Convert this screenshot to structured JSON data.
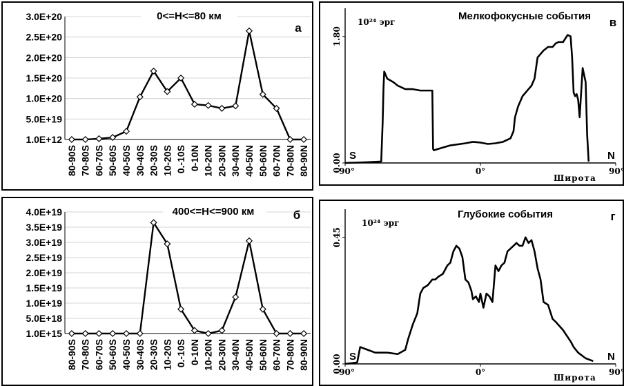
{
  "chart_data": [
    {
      "id": "a",
      "type": "line",
      "title": "0<=H<=80 км",
      "letter": "а",
      "categories": [
        "80-90S",
        "70-80S",
        "60-70S",
        "50-60S",
        "40-50S",
        "30-40S",
        "20-30S",
        "10-20S",
        "0.-10S",
        "0-10N",
        "10-20N",
        "20-30N",
        "30-40N",
        "40-50N",
        "50-60N",
        "60-70N",
        "70-80N",
        "80-90N"
      ],
      "values": [
        1000000000000.0,
        1000000000000.0,
        2e+18,
        5e+18,
        2e+19,
        1.04e+20,
        1.67e+20,
        1.17e+20,
        1.5e+20,
        8.6e+19,
        8.3e+19,
        7.6e+19,
        8.2e+19,
        2.65e+20,
        1.1e+20,
        7.6e+19,
        1000000000000.0,
        1000000000000.0
      ],
      "ylim": [
        0,
        3e+20
      ],
      "yticks": [
        1000000000000.0,
        5e+19,
        1e+20,
        1.5e+20,
        2e+20,
        2.5e+20,
        3e+20
      ],
      "ytick_labels": [
        "1.0E+12",
        "5.0E+19",
        "1.0E+20",
        "1.5E+20",
        "2.0E+20",
        "2.5E+20",
        "3.0E+20"
      ],
      "grid": true
    },
    {
      "id": "b",
      "type": "line",
      "title": "400<=H<=900 км",
      "letter": "б",
      "categories": [
        "80-90S",
        "70-80S",
        "60-70S",
        "50-60S",
        "40-50S",
        "30-40S",
        "20-30S",
        "10-20S",
        "0.-10S",
        "0-10N",
        "10-20N",
        "20-30N",
        "30-40N",
        "40-50N",
        "50-60N",
        "60-70N",
        "70-80N",
        "80-90N"
      ],
      "values": [
        1000000000000000.0,
        1000000000000000.0,
        1000000000000000.0,
        1000000000000000.0,
        1000000000000000.0,
        1000000000000000.0,
        3.65e+19,
        2.95e+19,
        8e+18,
        1e+18,
        1000000000000000.0,
        1e+18,
        1.2e+19,
        3.05e+19,
        8e+18,
        1000000000000000.0,
        1000000000000000.0,
        1000000000000000.0
      ],
      "ylim": [
        0,
        4e+19
      ],
      "yticks": [
        1000000000000000.0,
        5e+18,
        1e+19,
        1.5e+19,
        2e+19,
        2.5e+19,
        3e+19,
        3.5e+19,
        4e+19
      ],
      "ytick_labels": [
        "1.0E+15",
        "5.0E+18",
        "1.0E+19",
        "1.5E+19",
        "2.0E+19",
        "2.5E+19",
        "3.0E+19",
        "3.5E+19",
        "4.0E+19"
      ],
      "grid": true
    },
    {
      "id": "c",
      "type": "line",
      "title": "Мелкофокусные события",
      "letter": "в",
      "unit_label": "10²⁴ эрг",
      "xlabel": "Широта",
      "south_label": "S",
      "north_label": "N",
      "xlim": [
        -90,
        90
      ],
      "ylim": [
        0,
        2.2
      ],
      "yticks": [
        0.0,
        1.8
      ],
      "ytick_labels": [
        "0.00",
        "1.80"
      ],
      "xtick_labels": [
        "-90°",
        "0°",
        "90°"
      ],
      "x": [
        -90,
        -75,
        -66,
        -65,
        -64.5,
        -64,
        -63,
        -62,
        -58,
        -55,
        -50,
        -45,
        -40,
        -35,
        -32,
        -31.5,
        -31,
        -28,
        -20,
        -10,
        -5,
        0,
        5,
        10,
        15,
        20,
        22,
        23,
        25,
        28,
        30,
        32,
        34,
        36,
        38,
        40,
        42,
        45,
        48,
        50,
        52,
        55,
        58,
        60,
        61,
        62,
        63,
        64,
        65,
        66,
        68,
        70,
        71,
        72
      ],
      "y": [
        0.0,
        0.01,
        0.02,
        0.6,
        1.05,
        1.3,
        1.25,
        1.2,
        1.15,
        1.1,
        1.05,
        1.05,
        1.03,
        1.03,
        1.03,
        0.2,
        0.18,
        0.2,
        0.25,
        0.28,
        0.3,
        0.29,
        0.27,
        0.28,
        0.3,
        0.35,
        0.45,
        0.65,
        0.8,
        0.95,
        1.0,
        1.05,
        1.1,
        1.2,
        1.5,
        1.55,
        1.6,
        1.65,
        1.65,
        1.7,
        1.72,
        1.72,
        1.82,
        1.8,
        1.5,
        1.0,
        0.95,
        0.98,
        0.9,
        0.65,
        1.35,
        1.15,
        0.4,
        0.02
      ],
      "grid": false
    },
    {
      "id": "d",
      "type": "line",
      "title": "Глубокие события",
      "letter": "г",
      "unit_label": "10²⁴ эрг",
      "xlabel": "Широта",
      "south_label": "S",
      "north_label": "N",
      "xlim": [
        -90,
        90
      ],
      "ylim": [
        0,
        0.55
      ],
      "yticks": [
        0.0,
        0.45
      ],
      "ytick_labels": [
        "0.00",
        "0.45"
      ],
      "xtick_labels": [
        "-90°",
        "0°",
        "90°"
      ],
      "x": [
        -90,
        -82,
        -80,
        -75,
        -70,
        -62,
        -55,
        -50,
        -48,
        -45,
        -42,
        -40,
        -38,
        -35,
        -32,
        -30,
        -28,
        -25,
        -22,
        -20,
        -18,
        -16,
        -14,
        -12,
        -10,
        -8,
        -6,
        -5,
        -3,
        -1,
        0,
        2,
        4,
        6,
        8,
        10,
        12,
        14,
        16,
        18,
        20,
        22,
        24,
        26,
        28,
        30,
        32,
        34,
        36,
        38,
        40,
        42,
        45,
        48,
        50,
        55,
        60,
        62,
        65,
        70,
        75
      ],
      "y": [
        0.0,
        0.005,
        0.06,
        0.05,
        0.04,
        0.04,
        0.035,
        0.05,
        0.09,
        0.14,
        0.18,
        0.25,
        0.27,
        0.28,
        0.3,
        0.3,
        0.31,
        0.32,
        0.35,
        0.36,
        0.4,
        0.42,
        0.41,
        0.38,
        0.3,
        0.29,
        0.26,
        0.23,
        0.24,
        0.22,
        0.25,
        0.2,
        0.25,
        0.24,
        0.22,
        0.35,
        0.33,
        0.35,
        0.36,
        0.4,
        0.41,
        0.42,
        0.43,
        0.42,
        0.42,
        0.45,
        0.43,
        0.44,
        0.4,
        0.34,
        0.3,
        0.22,
        0.21,
        0.16,
        0.15,
        0.12,
        0.08,
        0.06,
        0.04,
        0.02,
        0.01
      ],
      "grid": false
    }
  ]
}
